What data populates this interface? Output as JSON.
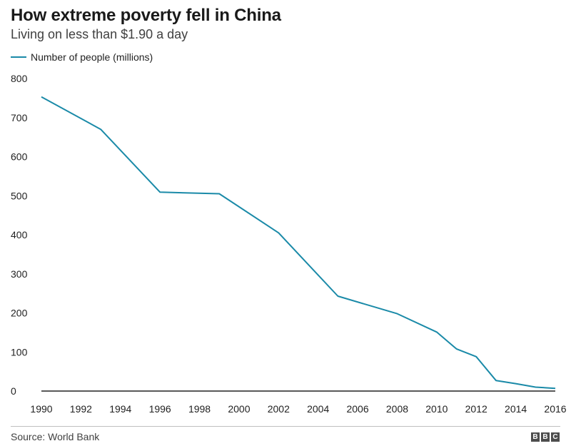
{
  "colors": {
    "series": "#1a8aa8",
    "axis": "#222222",
    "grid": "#d9d9d9"
  },
  "chart_data": {
    "type": "line",
    "title": "How extreme poverty fell in China",
    "subtitle": "Living on less than $1.90 a day",
    "xlabel": "",
    "ylabel": "",
    "xlim": [
      1990,
      2016
    ],
    "ylim": [
      0,
      800
    ],
    "x_ticks": [
      1990,
      1992,
      1994,
      1996,
      1998,
      2000,
      2002,
      2004,
      2006,
      2008,
      2010,
      2012,
      2014,
      2016
    ],
    "y_ticks": [
      0,
      100,
      200,
      300,
      400,
      500,
      600,
      700,
      800
    ],
    "legend_position": "top-left",
    "series": [
      {
        "name": "Number of people (millions)",
        "x": [
          1990,
          1993,
          1996,
          1999,
          2002,
          2005,
          2008,
          2010,
          2011,
          2012,
          2013,
          2014,
          2015,
          2016
        ],
        "values": [
          753,
          670,
          509,
          505,
          405,
          243,
          198,
          151,
          108,
          88,
          27,
          19,
          10,
          7
        ]
      }
    ]
  },
  "footer": {
    "source": "Source: World Bank",
    "logo": [
      "B",
      "B",
      "C"
    ]
  }
}
